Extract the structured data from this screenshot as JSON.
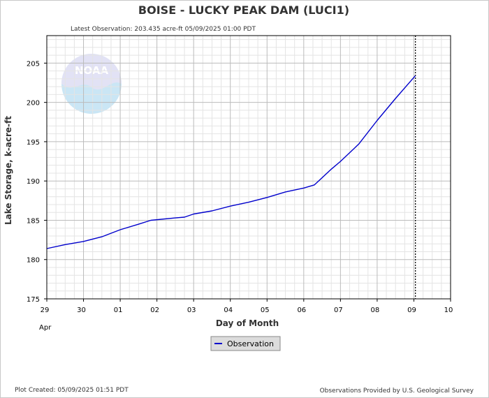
{
  "chart_data": {
    "type": "line",
    "title": "BOISE - LUCKY PEAK DAM  (LUCI1)",
    "subtitle": "Latest Observation: 203.435 acre-ft 05/09/2025 01:00 PDT",
    "xlabel": "Day of Month",
    "ylabel": "Lake Storage, k-acre-ft",
    "x_tick_labels": [
      "29",
      "30",
      "01",
      "02",
      "03",
      "04",
      "05",
      "06",
      "07",
      "08",
      "09",
      "10"
    ],
    "x_sub_label": "Apr",
    "x_range": [
      "2025-04-29",
      "2025-05-10"
    ],
    "y_ticks": [
      175,
      180,
      185,
      190,
      195,
      200,
      205
    ],
    "ylim": [
      175,
      208.5
    ],
    "grid": true,
    "latest_marker": "2025-05-09T01:00",
    "legend": {
      "placement": "bottom-center",
      "label": "Observation"
    },
    "series": [
      {
        "name": "Observation",
        "color": "#0000cc",
        "points": [
          [
            "2025-04-29T00:00",
            181.4
          ],
          [
            "2025-04-29T12:00",
            181.9
          ],
          [
            "2025-04-30T00:00",
            182.3
          ],
          [
            "2025-04-30T12:00",
            182.9
          ],
          [
            "2025-05-01T00:00",
            183.8
          ],
          [
            "2025-05-01T12:00",
            184.5
          ],
          [
            "2025-05-01T20:00",
            185.0
          ],
          [
            "2025-05-02T12:00",
            185.3
          ],
          [
            "2025-05-02T18:00",
            185.4
          ],
          [
            "2025-05-03T00:00",
            185.8
          ],
          [
            "2025-05-03T12:00",
            186.2
          ],
          [
            "2025-05-04T00:00",
            186.8
          ],
          [
            "2025-05-04T12:00",
            187.3
          ],
          [
            "2025-05-05T00:00",
            187.9
          ],
          [
            "2025-05-05T12:00",
            188.6
          ],
          [
            "2025-05-06T00:00",
            189.1
          ],
          [
            "2025-05-06T07:00",
            189.5
          ],
          [
            "2025-05-06T18:00",
            191.5
          ],
          [
            "2025-05-07T00:00",
            192.5
          ],
          [
            "2025-05-07T12:00",
            194.7
          ],
          [
            "2025-05-08T00:00",
            197.7
          ],
          [
            "2025-05-08T12:00",
            200.5
          ],
          [
            "2025-05-09T01:00",
            203.4
          ]
        ]
      }
    ]
  },
  "footer": {
    "left": "Plot Created: 05/09/2025 01:51 PDT",
    "right": "Observations Provided by U.S. Geological Survey"
  },
  "logo": {
    "name": "noaa-logo",
    "text": "NOAA"
  }
}
